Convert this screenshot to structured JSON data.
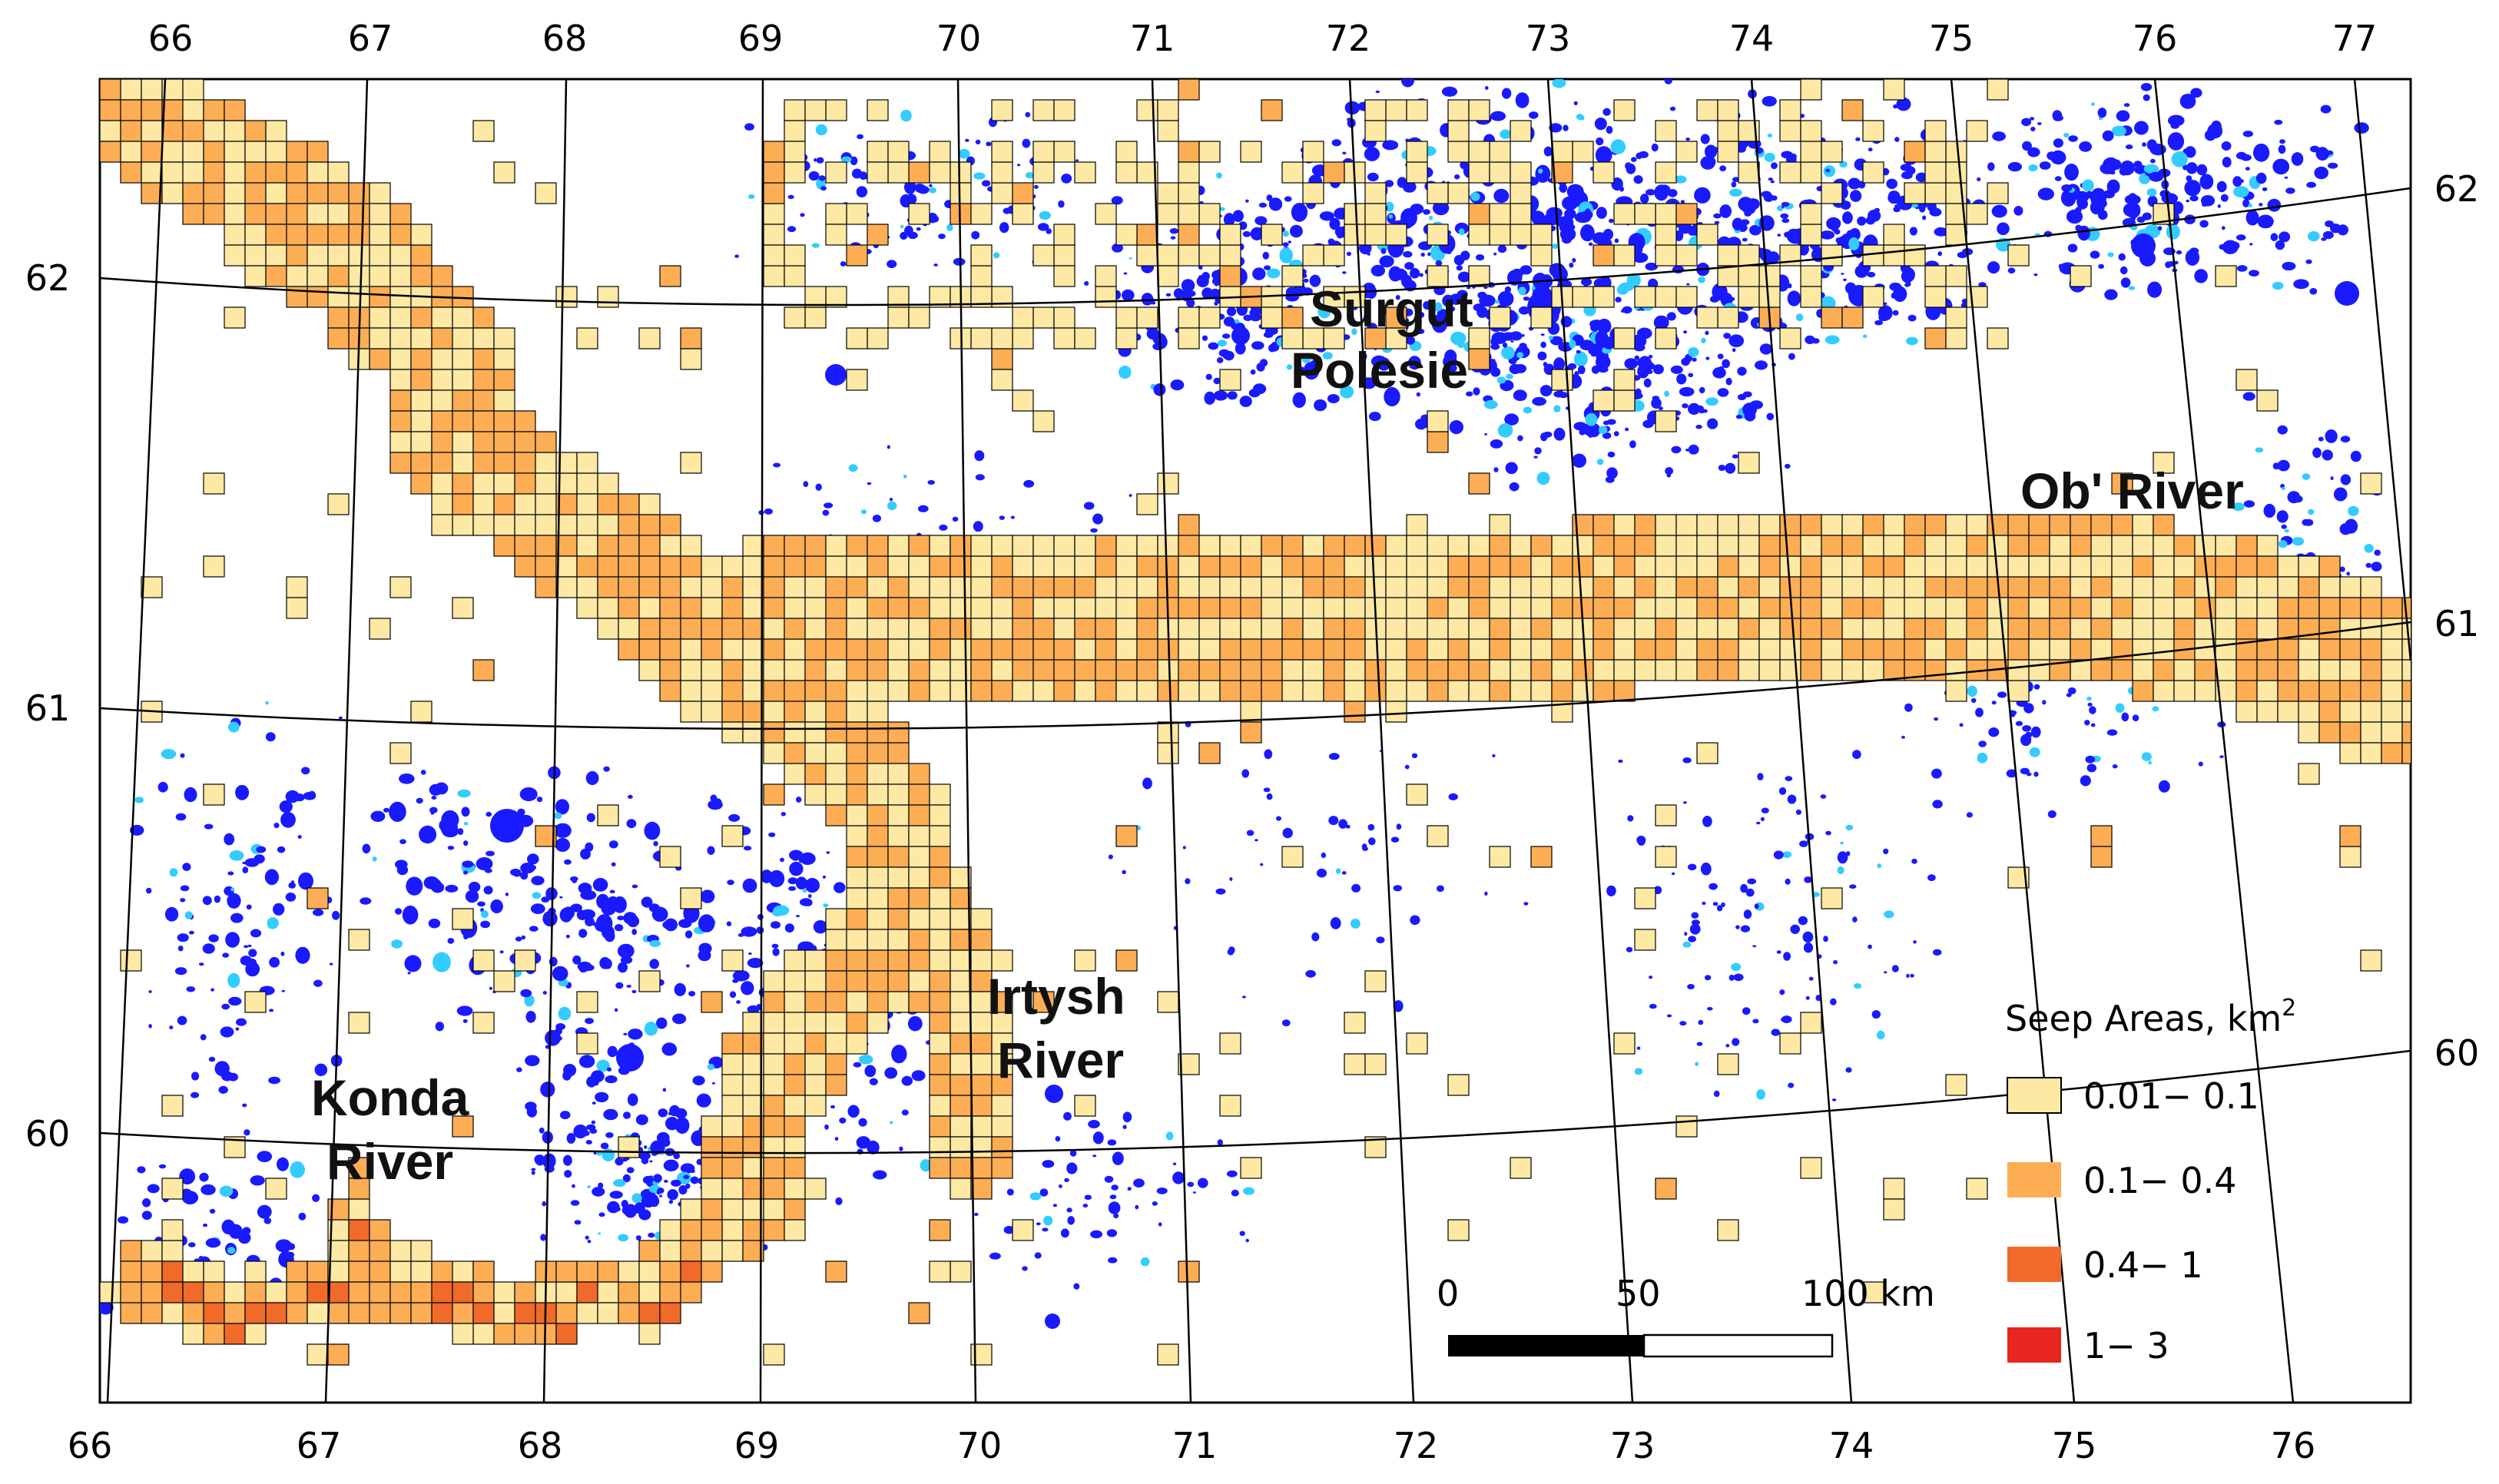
{
  "map": {
    "bottom_longitude_ticks": [
      "66",
      "67",
      "68",
      "69",
      "70",
      "71",
      "72",
      "73",
      "74",
      "75",
      "76"
    ],
    "top_longitude_ticks": [
      "66",
      "67",
      "68",
      "69",
      "70",
      "71",
      "72",
      "73",
      "74",
      "75",
      "76",
      "77"
    ],
    "left_latitude_ticks": [
      "62",
      "61",
      "60"
    ],
    "right_latitude_ticks": [
      "62",
      "61",
      "60"
    ],
    "labels": {
      "surgut_line1": "Surgut",
      "surgut_line2": "Polesie",
      "ob": "Ob' River",
      "irtysh_line1": "Irtysh",
      "irtysh_line2": "River",
      "konda_line1": "Konda",
      "konda_line2": "River"
    },
    "colors": {
      "water": "#1a1aff",
      "water_light": "#33ccff",
      "graticule": "#000000",
      "cell_outline": "#000000"
    }
  },
  "legend": {
    "title_main": "Seep Areas, km",
    "title_sup": "2",
    "classes": [
      {
        "label": "0.01− 0.1",
        "color": "#fde9a4"
      },
      {
        "label": "0.1− 0.4",
        "color": "#fdae55"
      },
      {
        "label": "0.4− 1",
        "color": "#f06a2a"
      },
      {
        "label": "1− 3",
        "color": "#e8251f"
      }
    ]
  },
  "scalebar": {
    "label_0": "0",
    "label_50": "50",
    "label_100": "100 km"
  }
}
